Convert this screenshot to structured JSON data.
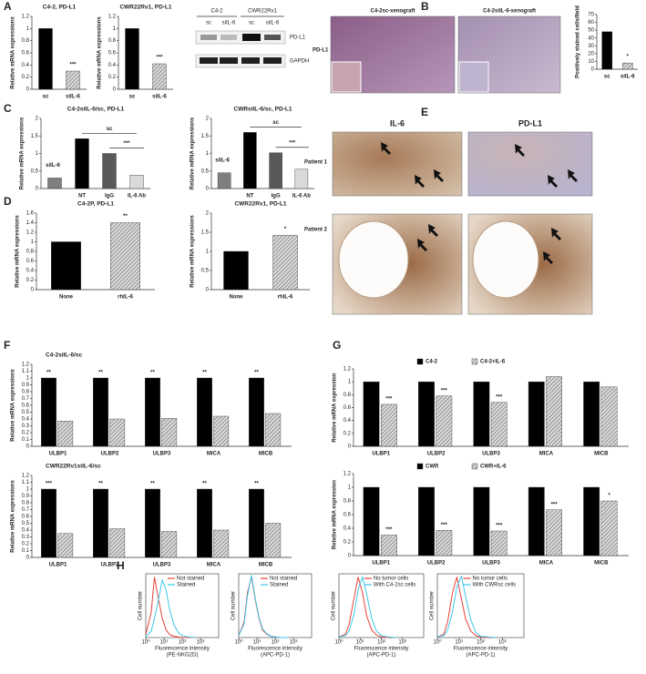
{
  "panel_labels": [
    "A",
    "B",
    "C",
    "D",
    "E",
    "F",
    "G",
    "H"
  ],
  "blot": {
    "groups": [
      "C4-2",
      "CWR22Rv1"
    ],
    "lanes": [
      "sc",
      "siIL-6",
      "sc",
      "siIL-6"
    ],
    "bands": [
      "PD-L1",
      "GAPDH"
    ]
  },
  "images": {
    "B": {
      "columns": [
        "C4-2sc-xenograft",
        "C4-2siIL-6-xenograft"
      ],
      "row": "PD-L1"
    },
    "E": {
      "columns": [
        "IL-6",
        "PD-L1"
      ],
      "rows": [
        "Patient 1",
        "Patient 2"
      ]
    }
  },
  "chart_data": [
    {
      "type": "bar",
      "title": "C4-2, PD-L1",
      "ylabel": "Relative mRNA expressions",
      "categories": [
        "sc",
        "siIL-6"
      ],
      "values": [
        1,
        0.3
      ],
      "colors": [
        "#000000",
        "#bfbfbf"
      ],
      "hatched": [
        false,
        true
      ],
      "annotations": [
        null,
        "***"
      ],
      "ylim": [
        0,
        1.2
      ],
      "yticks": [
        0,
        0.2,
        0.4,
        0.6,
        0.8,
        1,
        1.2
      ]
    },
    {
      "type": "bar",
      "title": "CWR22Rv1, PD-L1",
      "ylabel": "Relative mRNA expressions",
      "categories": [
        "sc",
        "siIL-6"
      ],
      "values": [
        1,
        0.42
      ],
      "colors": [
        "#000000",
        "#bfbfbf"
      ],
      "hatched": [
        false,
        true
      ],
      "annotations": [
        null,
        "***"
      ],
      "ylim": [
        0,
        1.2
      ],
      "yticks": [
        0,
        0.2,
        0.4,
        0.6,
        0.8,
        1,
        1.2
      ]
    },
    {
      "type": "bar",
      "ylabel": "Positively stained cells/field",
      "categories": [
        "sc",
        "siIL-6"
      ],
      "values": [
        48,
        8
      ],
      "colors": [
        "#000000",
        "#bfbfbf"
      ],
      "hatched": [
        false,
        true
      ],
      "annotations": [
        null,
        "*"
      ],
      "ylim": [
        0,
        70
      ],
      "yticks": [
        0,
        10,
        20,
        30,
        40,
        50,
        60,
        70
      ]
    },
    {
      "type": "bar",
      "title": "C4-2siIL-6/sc, PD-L1",
      "ylabel": "Relative mRNA expressions",
      "categories": [
        "siIL-6",
        "NT",
        "IgG",
        "IL-6 Ab"
      ],
      "values": [
        0.3,
        1.42,
        1.0,
        0.38
      ],
      "colors": [
        "#7f7f7f",
        "#000000",
        "#595959",
        "#d9d9d9"
      ],
      "hatched": [
        false,
        false,
        false,
        false
      ],
      "brackets": [
        "sc",
        "***"
      ],
      "ylim": [
        0,
        2
      ],
      "yticks": [
        0,
        0.5,
        1,
        1.5,
        2
      ]
    },
    {
      "type": "bar",
      "title": "CWRsiIL-6/sc, PD-L1",
      "ylabel": "Relative mRNA expressions",
      "categories": [
        "siIL-6",
        "NT",
        "IgG",
        "IL-6 Ab"
      ],
      "values": [
        0.45,
        1.6,
        1.02,
        0.55
      ],
      "colors": [
        "#7f7f7f",
        "#000000",
        "#595959",
        "#d9d9d9"
      ],
      "hatched": [
        false,
        false,
        false,
        false
      ],
      "brackets": [
        "sc",
        "***"
      ],
      "ylim": [
        0,
        2
      ],
      "yticks": [
        0,
        0.5,
        1,
        1.5,
        2
      ]
    },
    {
      "type": "bar",
      "title": "C4-2P, PD-L1",
      "ylabel": "Relative mRNA expressions",
      "categories": [
        "None",
        "rhIL-6"
      ],
      "values": [
        1,
        1.4
      ],
      "colors": [
        "#000000",
        "#bfbfbf"
      ],
      "hatched": [
        false,
        true
      ],
      "annotations": [
        null,
        "**"
      ],
      "ylim": [
        0,
        1.6
      ],
      "yticks": [
        0,
        0.2,
        0.4,
        0.6,
        0.8,
        1,
        1.2,
        1.4,
        1.6
      ]
    },
    {
      "type": "bar",
      "title": "CWR22Rv1, PD-L1",
      "ylabel": "Relative mRNA expressions",
      "categories": [
        "None",
        "rhIL-6"
      ],
      "values": [
        1,
        1.42
      ],
      "colors": [
        "#000000",
        "#bfbfbf"
      ],
      "hatched": [
        false,
        true
      ],
      "annotations": [
        null,
        "*"
      ],
      "ylim": [
        0,
        2
      ],
      "yticks": [
        0,
        0.5,
        1,
        1.5,
        2
      ]
    },
    {
      "type": "bar",
      "title": "C4-2siIL-6/sc",
      "ylabel": "Relative mRNA expressions",
      "categories": [
        "ULBP1",
        "ULBP2",
        "ULBP3",
        "MICA",
        "MICB"
      ],
      "series": [
        {
          "color": "#000000",
          "values": [
            1,
            1,
            1,
            1,
            1
          ],
          "annotations": [
            "**",
            "**",
            "**",
            "**",
            "**"
          ]
        },
        {
          "color": "#bfbfbf",
          "hatched": true,
          "values": [
            0.37,
            0.4,
            0.41,
            0.44,
            0.48
          ]
        }
      ],
      "ylim": [
        0,
        1.2
      ],
      "yticks": [
        0,
        0.1,
        0.2,
        0.3,
        0.4,
        0.5,
        0.6,
        0.7,
        0.8,
        0.9,
        1,
        1.1,
        1.2
      ]
    },
    {
      "type": "bar",
      "title": "CWR22Rv1siIL-6/sc",
      "ylabel": "Relative mRNA expressions",
      "categories": [
        "ULBP1",
        "ULBP2",
        "ULBP3",
        "MICA",
        "MICB"
      ],
      "series": [
        {
          "color": "#000000",
          "values": [
            1,
            1,
            1,
            1,
            1
          ],
          "annotations": [
            "***",
            "**",
            "**",
            "**",
            "**"
          ]
        },
        {
          "color": "#bfbfbf",
          "hatched": true,
          "values": [
            0.35,
            0.42,
            0.38,
            0.4,
            0.5
          ]
        }
      ],
      "ylim": [
        0,
        1.2
      ],
      "yticks": [
        0,
        0.1,
        0.2,
        0.3,
        0.4,
        0.5,
        0.6,
        0.7,
        0.8,
        0.9,
        1,
        1.1,
        1.2
      ]
    },
    {
      "type": "bar",
      "ylabel": "Relative mRNA expression",
      "categories": [
        "ULBP1",
        "ULBP2",
        "ULBP3",
        "MICA",
        "MICB"
      ],
      "legend": "top",
      "series": [
        {
          "name": "C4-2",
          "color": "#000000",
          "values": [
            1,
            1,
            1,
            1,
            1
          ]
        },
        {
          "name": "C4-2+IL-6",
          "color": "#bfbfbf",
          "hatched": true,
          "values": [
            0.65,
            0.78,
            0.68,
            1.08,
            0.92
          ],
          "annotations": [
            "***",
            "***",
            "***",
            null,
            null
          ]
        }
      ],
      "ylim": [
        0,
        1.2
      ],
      "yticks": [
        0,
        0.2,
        0.4,
        0.6,
        0.8,
        1,
        1.2
      ]
    },
    {
      "type": "bar",
      "ylabel": "Relative mRNA expression",
      "categories": [
        "ULBP1",
        "ULBP2",
        "ULBP3",
        "MICA",
        "MICB"
      ],
      "legend": "top",
      "series": [
        {
          "name": "CWR",
          "color": "#000000",
          "values": [
            1,
            1,
            1,
            1,
            1
          ]
        },
        {
          "name": "CWR+IL-6",
          "color": "#bfbfbf",
          "hatched": true,
          "values": [
            0.3,
            0.37,
            0.36,
            0.67,
            0.8
          ],
          "annotations": [
            "***",
            "***",
            "***",
            "***",
            "*"
          ]
        }
      ],
      "ylim": [
        0,
        1.2
      ],
      "yticks": [
        0,
        0.2,
        0.4,
        0.6,
        0.8,
        1,
        1.2
      ]
    },
    {
      "type": "line",
      "ylabel": "Cell number",
      "xlabel": [
        "Fluorescence intensity",
        "(PE-NKG2D)"
      ],
      "xlog": true,
      "legend": "upper right",
      "x": [
        1,
        2,
        3,
        5,
        8,
        13,
        20,
        35,
        60,
        100,
        200,
        500
      ],
      "series": [
        {
          "name": "Not stained",
          "color": "#e8423a",
          "values": [
            5,
            40,
            95,
            60,
            30,
            12,
            5,
            2,
            1,
            0,
            0,
            0
          ]
        },
        {
          "name": "Stained",
          "color": "#3cc8e8",
          "values": [
            2,
            10,
            30,
            60,
            90,
            75,
            45,
            20,
            8,
            3,
            1,
            0
          ]
        }
      ],
      "xlim": [
        1,
        10000
      ],
      "xticks": [
        {
          "value": 1,
          "label": "10⁰"
        },
        {
          "value": 10,
          "label": "10¹"
        },
        {
          "value": 100,
          "label": "10²"
        },
        {
          "value": 1000,
          "label": "10³"
        }
      ],
      "ylim": [
        0,
        100
      ]
    },
    {
      "type": "line",
      "ylabel": "Cell number",
      "xlabel": [
        "Fluorescence intensity",
        "(APC-PD-1)"
      ],
      "xlog": true,
      "legend": "upper right",
      "x": [
        1,
        2,
        3,
        5,
        8,
        13,
        20,
        35,
        60,
        100,
        200,
        500
      ],
      "series": [
        {
          "name": "Not stained",
          "color": "#e8423a",
          "values": [
            3,
            25,
            70,
            95,
            60,
            30,
            12,
            5,
            2,
            1,
            0,
            0
          ]
        },
        {
          "name": "Stained",
          "color": "#3cc8e8",
          "values": [
            3,
            22,
            65,
            98,
            62,
            32,
            14,
            6,
            2,
            1,
            0,
            0
          ]
        }
      ],
      "xlim": [
        1,
        10000
      ],
      "xticks": [
        {
          "value": 1,
          "label": "10⁰"
        },
        {
          "value": 10,
          "label": "10¹"
        },
        {
          "value": 100,
          "label": "10²"
        },
        {
          "value": 1000,
          "label": "10³"
        }
      ],
      "ylim": [
        0,
        100
      ]
    },
    {
      "type": "line",
      "ylabel": "Cell number",
      "xlabel": [
        "Fluorescence intensity",
        "(APC-PD-1)"
      ],
      "xlog": true,
      "legend": "upper right",
      "x": [
        1,
        2,
        3,
        5,
        8,
        13,
        20,
        35,
        60,
        100,
        200,
        500
      ],
      "series": [
        {
          "name": "No tumor cells",
          "color": "#e8423a",
          "values": [
            1,
            5,
            20,
            60,
            95,
            70,
            35,
            12,
            4,
            1,
            0,
            0
          ]
        },
        {
          "name": "With C4-2sc cells",
          "color": "#3cc8e8",
          "values": [
            1,
            3,
            10,
            35,
            75,
            95,
            70,
            30,
            10,
            3,
            1,
            0
          ]
        }
      ],
      "xlim": [
        1,
        10000
      ],
      "xticks": [
        {
          "value": 1,
          "label": "10⁰"
        },
        {
          "value": 10,
          "label": "10¹"
        },
        {
          "value": 100,
          "label": "10²"
        },
        {
          "value": 1000,
          "label": "10³"
        }
      ],
      "ylim": [
        0,
        100
      ]
    },
    {
      "type": "line",
      "ylabel": "Cell number",
      "xlabel": [
        "Fluorescence intensity",
        "(APC-PD-1)"
      ],
      "xlog": true,
      "legend": "upper right",
      "x": [
        1,
        2,
        3,
        5,
        8,
        13,
        20,
        35,
        60,
        100,
        200,
        500
      ],
      "series": [
        {
          "name": "No tumor cells",
          "color": "#e8423a",
          "values": [
            1,
            5,
            25,
            70,
            95,
            60,
            30,
            10,
            3,
            1,
            0,
            0
          ]
        },
        {
          "name": "With CWRsc cells",
          "color": "#3cc8e8",
          "values": [
            1,
            3,
            12,
            40,
            80,
            96,
            65,
            28,
            8,
            2,
            1,
            0
          ]
        }
      ],
      "xlim": [
        1,
        10000
      ],
      "xticks": [
        {
          "value": 1,
          "label": "10⁰"
        },
        {
          "value": 10,
          "label": "10¹"
        },
        {
          "value": 100,
          "label": "10²"
        },
        {
          "value": 1000,
          "label": "10³"
        }
      ],
      "ylim": [
        0,
        100
      ]
    }
  ]
}
